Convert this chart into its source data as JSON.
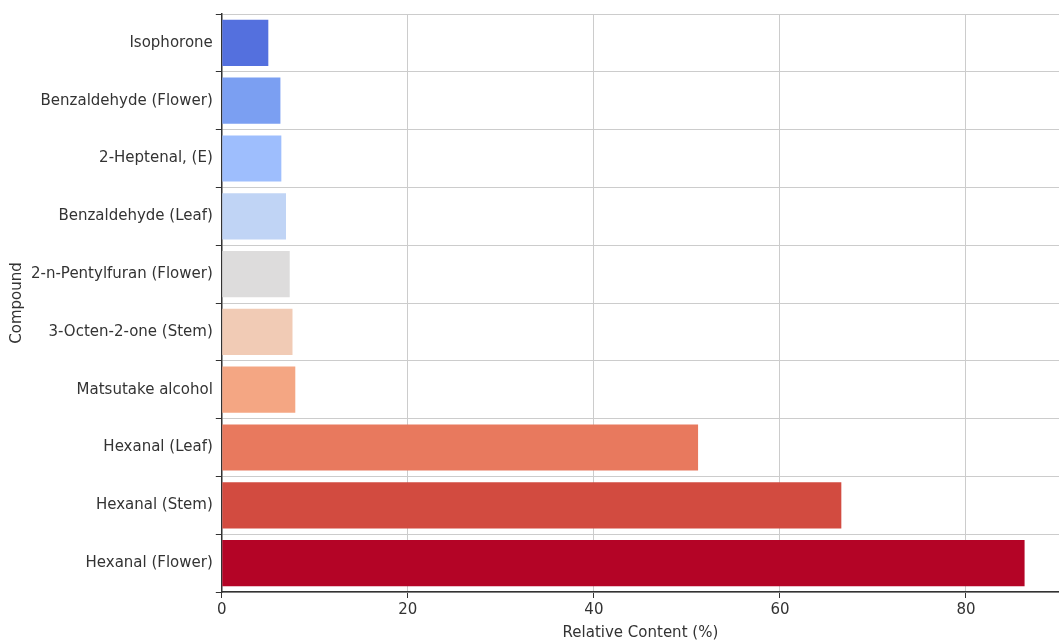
{
  "chart_data": {
    "type": "bar",
    "orientation": "horizontal",
    "xlabel": "Relative Content (%)",
    "ylabel": "Compound",
    "categories": [
      "Isophorone",
      "Benzaldehyde (Flower)",
      "2-Heptenal, (E)",
      "Benzaldehyde (Leaf)",
      "2-n-Pentylfuran (Flower)",
      "3-Octen-2-one (Stem)",
      "Matsutake alcohol",
      "Hexanal (Leaf)",
      "Hexanal (Stem)",
      "Hexanal (Flower)"
    ],
    "values": [
      5.0,
      6.3,
      6.4,
      6.9,
      7.3,
      7.6,
      7.9,
      51.2,
      66.6,
      86.3
    ],
    "colors": [
      "#5470de",
      "#7b9ff2",
      "#9ebefd",
      "#c0d4f5",
      "#dddcdc",
      "#f1cbb5",
      "#f4a683",
      "#e8795e",
      "#d24b40",
      "#b40426"
    ],
    "xlim": [
      0,
      90
    ],
    "xticks": [
      0,
      20,
      40,
      60,
      80
    ],
    "grid": true,
    "legend": false
  }
}
